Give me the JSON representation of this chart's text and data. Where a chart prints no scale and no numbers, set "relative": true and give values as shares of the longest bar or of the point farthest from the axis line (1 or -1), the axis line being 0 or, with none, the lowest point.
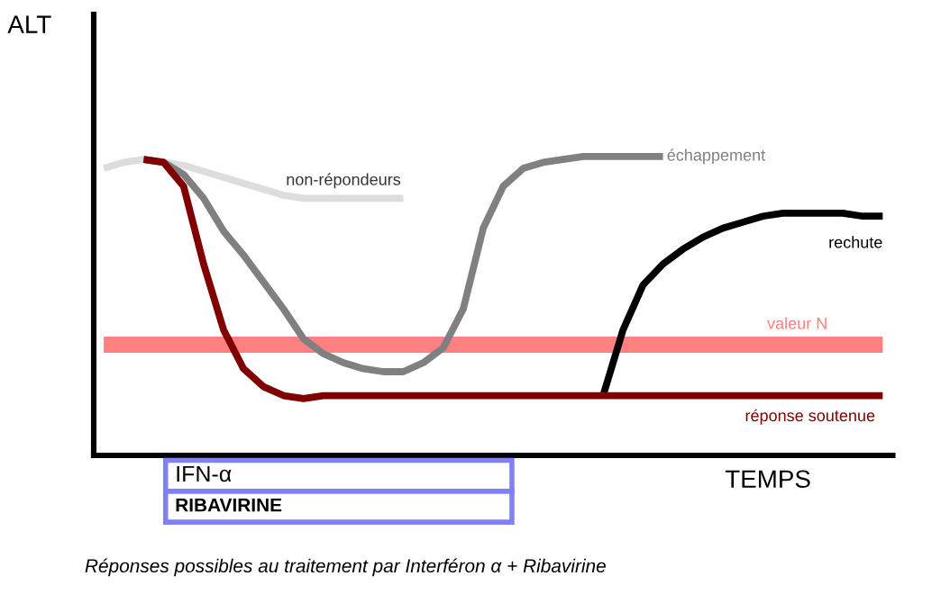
{
  "chart_data": {
    "type": "line",
    "relative": true,
    "xlabel": "TEMPS",
    "marker": "none",
    "line_style": "solid",
    "categories": [
      null,
      null,
      null,
      null,
      null,
      null,
      null,
      null,
      null,
      null,
      null,
      null,
      null,
      null,
      null,
      null,
      null,
      null,
      null,
      null,
      null,
      null,
      null,
      null,
      null,
      null,
      null,
      null,
      null,
      null,
      null,
      null,
      null,
      null,
      null,
      null,
      null,
      null,
      null,
      null
    ],
    "series": [
      {
        "name": "valeur N",
        "color": "#ff8080",
        "values": [
          0.37,
          0.37,
          0.37,
          0.37,
          0.37,
          0.37,
          0.37,
          0.37,
          0.37,
          0.37,
          0.37,
          0.37,
          0.37,
          0.37,
          0.37,
          0.37,
          0.37,
          0.37,
          0.37,
          0.37,
          0.37,
          0.37,
          0.37,
          0.37,
          0.37,
          0.37,
          0.37,
          0.37,
          0.37,
          0.37,
          0.37,
          0.37,
          0.37,
          0.37,
          0.37,
          0.37,
          0.37,
          0.37,
          0.37,
          0.37
        ]
      },
      {
        "name": "non-répondeurs",
        "color": "#dddddd",
        "values": [
          0.96,
          0.98,
          0.99,
          0.98,
          0.97,
          0.95,
          0.93,
          0.91,
          0.89,
          0.87,
          0.86,
          0.86,
          0.86,
          0.86,
          0.86,
          0.86,
          null,
          null,
          null,
          null,
          null,
          null,
          null,
          null,
          null,
          null,
          null,
          null,
          null,
          null,
          null,
          null,
          null,
          null,
          null,
          null,
          null,
          null,
          null,
          null
        ]
      },
      {
        "name": "échappement",
        "color": "#808080",
        "values": [
          null,
          null,
          0.99,
          0.98,
          0.94,
          0.86,
          0.75,
          0.67,
          0.58,
          0.49,
          0.39,
          0.34,
          0.31,
          0.29,
          0.28,
          0.28,
          0.31,
          0.36,
          0.49,
          0.76,
          0.9,
          0.96,
          0.98,
          0.99,
          1.0,
          1.0,
          1.0,
          1.0,
          1.0,
          null,
          null,
          null,
          null,
          null,
          null,
          null,
          null,
          null,
          null,
          null
        ]
      },
      {
        "name": "rechute",
        "color": "#000000",
        "values": [
          null,
          null,
          null,
          null,
          null,
          null,
          null,
          null,
          null,
          null,
          null,
          null,
          null,
          null,
          null,
          null,
          null,
          null,
          null,
          null,
          null,
          null,
          null,
          null,
          null,
          0.2,
          0.42,
          0.57,
          0.64,
          0.69,
          0.73,
          0.76,
          0.78,
          0.8,
          0.81,
          0.81,
          0.81,
          0.81,
          0.8,
          0.8
        ]
      },
      {
        "name": "réponse soutenue",
        "color": "#800000",
        "values": [
          null,
          null,
          0.99,
          0.98,
          0.9,
          0.64,
          0.42,
          0.29,
          0.23,
          0.2,
          0.19,
          0.2,
          0.2,
          0.2,
          0.2,
          0.2,
          0.2,
          0.2,
          0.2,
          0.2,
          0.2,
          0.2,
          0.2,
          0.2,
          0.2,
          0.2,
          0.2,
          0.2,
          0.2,
          0.2,
          0.2,
          0.2,
          0.2,
          0.2,
          0.2,
          0.2,
          0.2,
          0.2,
          0.2,
          0.2
        ]
      }
    ],
    "annotations": [
      "ALT",
      "IFN-α",
      "RIBAVIRINE",
      "Réponses possibles au traitement par Interféron α + Ribavirine"
    ]
  }
}
